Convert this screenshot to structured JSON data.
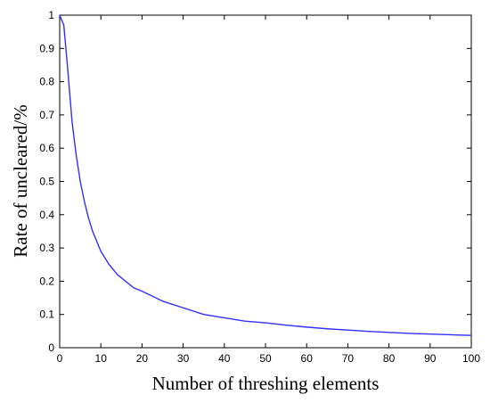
{
  "chart_data": {
    "type": "line",
    "title": "",
    "xlabel": "Number of threshing elements",
    "ylabel": "Rate of uncleared/%",
    "xlim": [
      0,
      100
    ],
    "ylim": [
      0,
      1
    ],
    "xticks": [
      0,
      10,
      20,
      30,
      40,
      50,
      60,
      70,
      80,
      90,
      100
    ],
    "yticks": [
      0,
      0.1,
      0.2,
      0.3,
      0.4,
      0.5,
      0.6,
      0.7,
      0.8,
      0.9,
      1
    ],
    "grid": false,
    "legend": "none",
    "line_color": "#3030ff",
    "series": [
      {
        "x": [
          0,
          1,
          2,
          3,
          4,
          5,
          6,
          7,
          8,
          9,
          10,
          12,
          14,
          16,
          18,
          20,
          25,
          30,
          35,
          40,
          45,
          50,
          55,
          60,
          65,
          70,
          75,
          80,
          85,
          90,
          95,
          100
        ],
        "y": [
          1.0,
          0.97,
          0.83,
          0.68,
          0.58,
          0.5,
          0.44,
          0.39,
          0.35,
          0.32,
          0.29,
          0.25,
          0.22,
          0.2,
          0.18,
          0.17,
          0.14,
          0.12,
          0.1,
          0.09,
          0.08,
          0.075,
          0.068,
          0.062,
          0.057,
          0.053,
          0.049,
          0.046,
          0.043,
          0.041,
          0.039,
          0.037
        ]
      }
    ]
  }
}
